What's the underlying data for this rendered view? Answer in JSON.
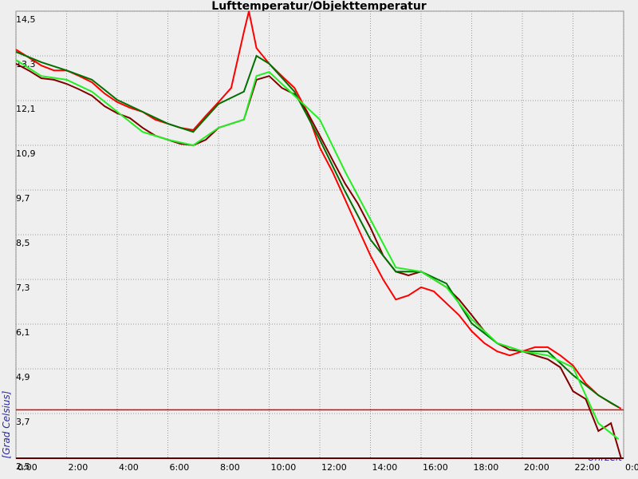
{
  "chart_data": {
    "type": "line",
    "title": "Lufttemperatur/Objekttemperatur",
    "y_label": "[Grad Celsius]",
    "x_label": "Uhrzeit",
    "grid": true,
    "xlim": [
      0,
      24
    ],
    "ylim": [
      2.5,
      14.5
    ],
    "xticks": [
      {
        "value": 0,
        "label": "0:00"
      },
      {
        "value": 2,
        "label": "2:00"
      },
      {
        "value": 4,
        "label": "4:00"
      },
      {
        "value": 6,
        "label": "6:00"
      },
      {
        "value": 8,
        "label": "8:00"
      },
      {
        "value": 10,
        "label": "10:00"
      },
      {
        "value": 12,
        "label": "12:00"
      },
      {
        "value": 14,
        "label": "14:00"
      },
      {
        "value": 16,
        "label": "16:00"
      },
      {
        "value": 18,
        "label": "18:00"
      },
      {
        "value": 20,
        "label": "20:00"
      },
      {
        "value": 22,
        "label": "22:00"
      },
      {
        "value": 24,
        "label": "0:00"
      }
    ],
    "yticks": [
      {
        "value": 2.5,
        "label": "2,5"
      },
      {
        "value": 3.7,
        "label": "3,7"
      },
      {
        "value": 4.9,
        "label": "4,9"
      },
      {
        "value": 6.1,
        "label": "6,1"
      },
      {
        "value": 7.3,
        "label": "7,3"
      },
      {
        "value": 8.5,
        "label": "8,5"
      },
      {
        "value": 9.7,
        "label": "9,7"
      },
      {
        "value": 10.9,
        "label": "10,9"
      },
      {
        "value": 12.1,
        "label": "12,1"
      },
      {
        "value": 13.3,
        "label": "13,3"
      },
      {
        "value": 14.5,
        "label": "14,5"
      }
    ],
    "reference_lines": [
      {
        "value": 3.8,
        "color": "#e00000"
      }
    ],
    "series": [
      {
        "color": "#ff0000",
        "x": [
          0,
          0.5,
          1,
          1.5,
          2,
          2.5,
          3,
          3.5,
          4,
          4.5,
          5,
          5.5,
          6,
          6.5,
          7,
          7.5,
          8,
          8.5,
          9,
          9.2,
          9.5,
          10,
          10.5,
          11,
          11.5,
          12,
          12.5,
          13,
          13.5,
          14,
          14.5,
          15,
          15.5,
          16,
          16.5,
          17,
          17.5,
          18,
          18.5,
          19,
          19.5,
          20,
          20.5,
          21,
          21.5,
          22,
          22.5,
          23,
          23.5,
          23.9
        ],
        "values": [
          13.47,
          13.26,
          13.04,
          12.91,
          12.91,
          12.76,
          12.59,
          12.29,
          12.06,
          11.91,
          11.8,
          11.59,
          11.48,
          11.37,
          11.31,
          11.69,
          12.06,
          12.44,
          13.94,
          14.5,
          13.51,
          13.09,
          12.76,
          12.44,
          11.8,
          10.84,
          10.19,
          9.44,
          8.69,
          7.94,
          7.3,
          6.76,
          6.87,
          7.09,
          6.98,
          6.66,
          6.34,
          5.91,
          5.59,
          5.37,
          5.26,
          5.37,
          5.48,
          5.48,
          5.26,
          4.99,
          4.51,
          4.19,
          3.98,
          3.83
        ]
      },
      {
        "color": "#800000",
        "x": [
          0,
          0.5,
          1,
          1.5,
          2,
          2.5,
          3,
          3.5,
          4,
          4.5,
          5,
          5.5,
          6,
          6.5,
          7,
          7.5,
          8,
          8.5,
          9,
          9.5,
          10,
          10.5,
          11,
          11.5,
          12,
          12.5,
          13,
          13.5,
          14,
          14.5,
          15,
          15.5,
          16,
          16.5,
          17,
          17.5,
          18,
          18.5,
          19,
          19.5,
          20,
          20.5,
          21,
          21.5,
          22,
          22.5,
          23,
          23.5,
          23.9
        ],
        "values": [
          13.09,
          12.91,
          12.7,
          12.66,
          12.55,
          12.4,
          12.23,
          11.95,
          11.76,
          11.63,
          11.37,
          11.16,
          11.05,
          10.94,
          10.9,
          11.05,
          11.37,
          11.48,
          11.59,
          12.66,
          12.76,
          12.44,
          12.27,
          11.8,
          11.16,
          10.51,
          9.87,
          9.34,
          8.69,
          7.94,
          7.51,
          7.41,
          7.51,
          7.3,
          7.09,
          6.76,
          6.34,
          5.91,
          5.59,
          5.41,
          5.37,
          5.26,
          5.16,
          4.94,
          4.3,
          4.09,
          3.23,
          3.44,
          2.5
        ]
      },
      {
        "color": "#007000",
        "x": [
          0,
          1,
          2,
          3,
          4,
          5,
          6,
          7,
          8,
          9,
          9.5,
          10,
          11,
          12,
          13,
          14,
          15,
          16,
          17,
          18,
          19,
          20,
          21,
          22,
          23,
          23.8
        ],
        "values": [
          13.41,
          13.13,
          12.91,
          12.66,
          12.12,
          11.8,
          11.48,
          11.26,
          12.01,
          12.34,
          13.3,
          13.09,
          12.34,
          11.05,
          9.66,
          8.37,
          7.51,
          7.51,
          7.19,
          6.12,
          5.59,
          5.37,
          5.37,
          4.73,
          4.19,
          3.87
        ]
      },
      {
        "color": "#22ee22",
        "x": [
          0,
          1,
          2,
          3,
          4,
          5,
          6,
          7,
          8,
          9,
          9.5,
          10,
          11,
          12,
          13,
          14,
          15,
          16,
          17,
          18,
          19,
          20,
          21,
          22,
          23,
          23.8
        ],
        "values": [
          13.19,
          12.76,
          12.66,
          12.34,
          11.8,
          11.26,
          11.05,
          10.9,
          11.37,
          11.59,
          12.76,
          12.87,
          12.23,
          11.59,
          10.19,
          8.91,
          7.62,
          7.51,
          7.09,
          6.23,
          5.59,
          5.37,
          5.26,
          4.94,
          3.44,
          3.01
        ]
      }
    ]
  }
}
